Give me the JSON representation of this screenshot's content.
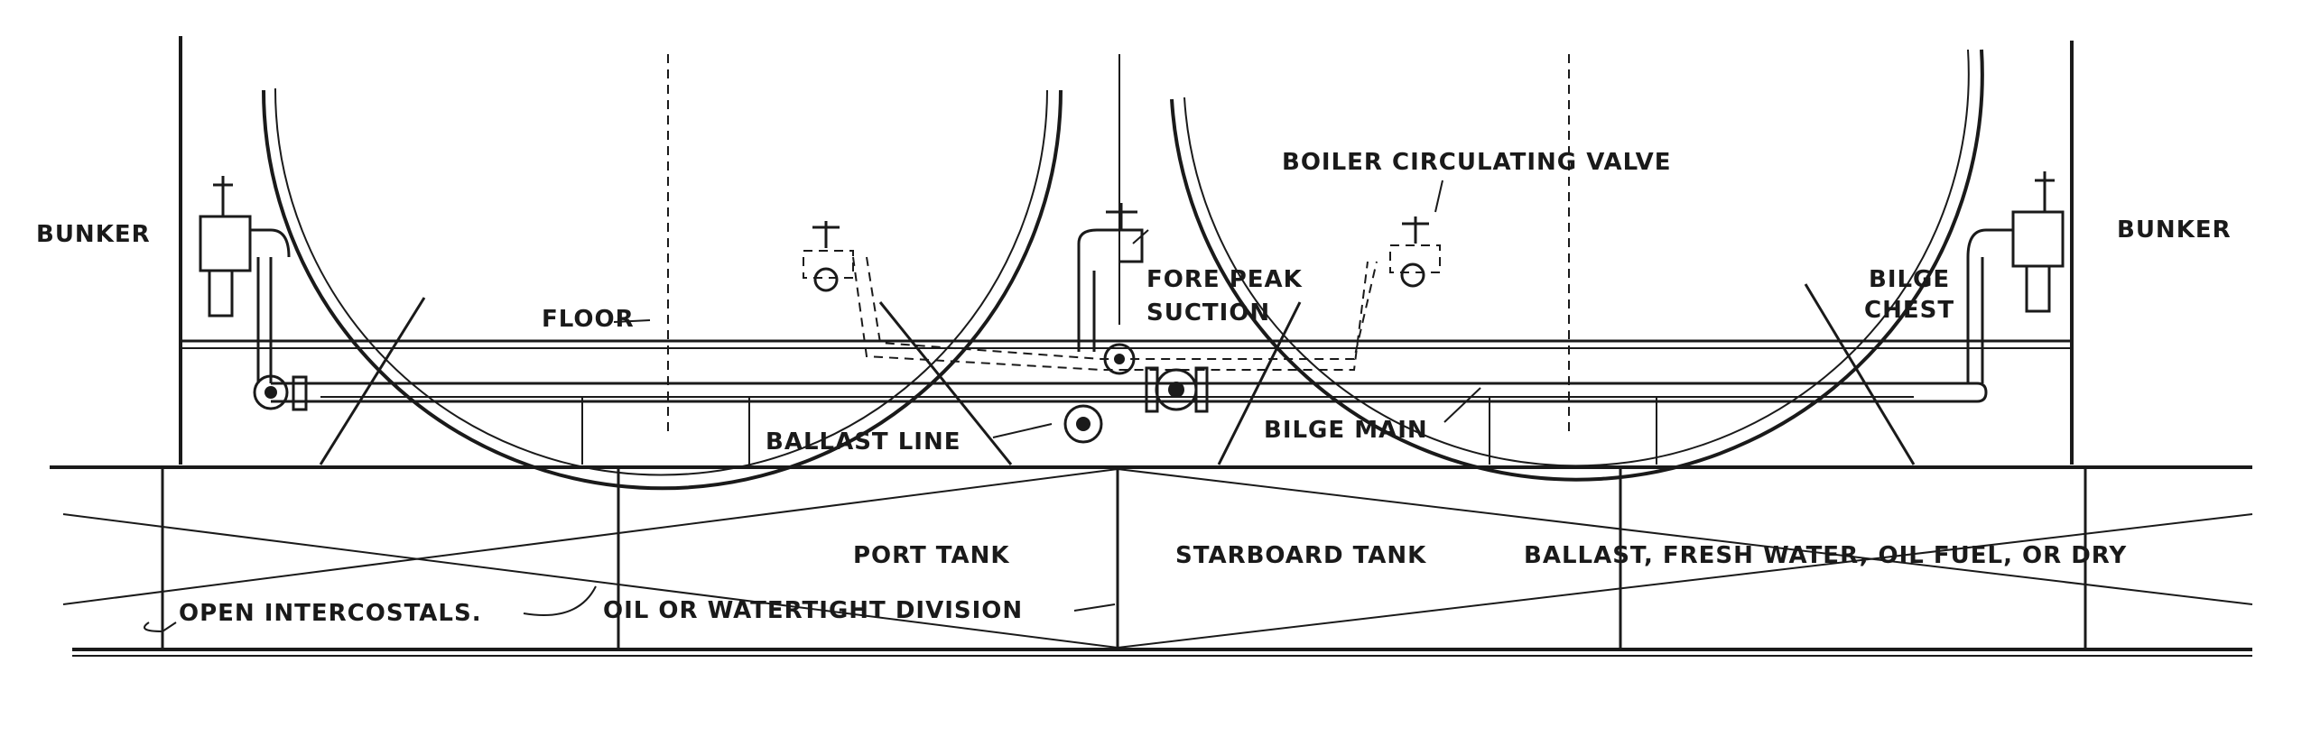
{
  "labels": {
    "bunker_left": "BUNKER",
    "bunker_right": "BUNKER",
    "boiler_valve": "BOILER CIRCULATING VALVE",
    "floor": "FLOOR",
    "fore_peak_1": "FORE PEAK",
    "fore_peak_2": "SUCTION",
    "bilge_chest_1": "BILGE",
    "bilge_chest_2": "CHEST",
    "ballast_line": "BALLAST LINE",
    "bilge_main": "BILGE MAIN",
    "port_tank": "PORT TANK",
    "starboard_tank": "STARBOARD TANK",
    "tank_contents": "BALLAST, FRESH WATER, OIL FUEL, OR DRY",
    "open_intercostals": "OPEN INTERCOSTALS.",
    "division": "OIL OR WATERTIGHT DIVISION"
  }
}
